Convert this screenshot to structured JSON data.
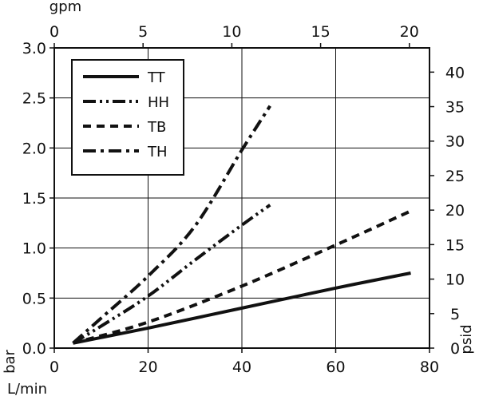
{
  "chart_data": {
    "type": "line",
    "axes": {
      "bottom": {
        "label": "L/min",
        "range": [
          0,
          80
        ],
        "ticks": [
          0,
          20,
          40,
          60,
          80
        ]
      },
      "top": {
        "label": "gpm",
        "range": [
          0,
          21.134
        ],
        "ticks": [
          0,
          5,
          10,
          15,
          20
        ]
      },
      "left": {
        "label": "bar",
        "range": [
          0,
          3.0
        ],
        "ticks": [
          "0.0",
          "0.5",
          "1.0",
          "1.5",
          "2.0",
          "2.5",
          "3.0"
        ]
      },
      "right": {
        "label": "psid",
        "range": [
          0,
          43.51
        ],
        "ticks": [
          0,
          5,
          10,
          15,
          20,
          25,
          30,
          35,
          40
        ]
      }
    },
    "grid": true,
    "legend_position": "top-left",
    "series": [
      {
        "name": "TT",
        "dash": "solid",
        "x": [
          4,
          20,
          40,
          60,
          76
        ],
        "y": [
          0.05,
          0.2,
          0.4,
          0.6,
          0.75
        ]
      },
      {
        "name": "HH",
        "dash": "dash-dot-dot",
        "x": [
          4,
          10,
          20,
          30,
          40,
          46
        ],
        "y": [
          0.05,
          0.22,
          0.52,
          0.88,
          1.23,
          1.43
        ]
      },
      {
        "name": "TB",
        "dash": "dashed",
        "x": [
          4,
          20,
          40,
          60,
          76
        ],
        "y": [
          0.05,
          0.26,
          0.62,
          1.03,
          1.37
        ]
      },
      {
        "name": "TH",
        "dash": "dash-dot",
        "x": [
          4,
          10,
          20,
          30,
          40,
          46
        ],
        "y": [
          0.05,
          0.3,
          0.72,
          1.22,
          1.98,
          2.42
        ]
      }
    ]
  }
}
